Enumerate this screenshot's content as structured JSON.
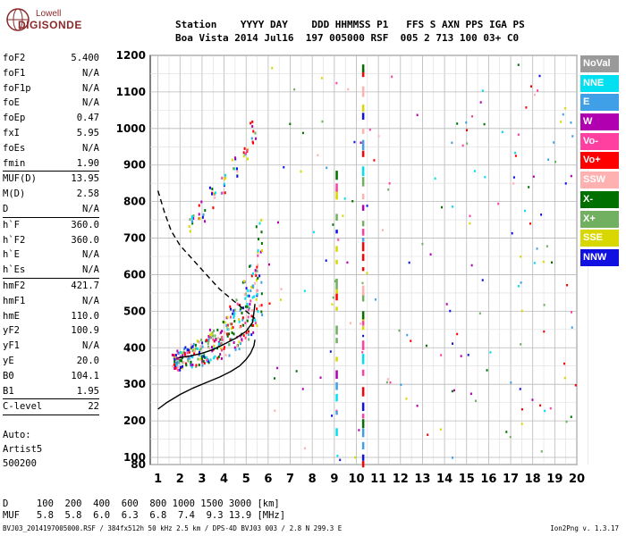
{
  "logo": {
    "line1": "Lowell",
    "line2": "DIGISONDE"
  },
  "header": {
    "line1": "Station    YYYY DAY    DDD HHMMSS P1   FFS S AXN PPS IGA PS",
    "line2": "Boa Vista 2014 Jul16  197 005000 RSF  005 2 713 100 03+ C0"
  },
  "params": [
    {
      "k": "foF2",
      "v": "5.400"
    },
    {
      "k": "foF1",
      "v": "N/A"
    },
    {
      "k": "foF1p",
      "v": "N/A"
    },
    {
      "k": "foE",
      "v": "N/A"
    },
    {
      "k": "foEp",
      "v": "0.47"
    },
    {
      "k": "fxI",
      "v": "5.95"
    },
    {
      "k": "foEs",
      "v": "N/A"
    },
    {
      "k": "fmin",
      "v": "1.90"
    },
    {
      "sep": true
    },
    {
      "k": "MUF(D)",
      "v": "13.95"
    },
    {
      "k": "M(D)",
      "v": "2.58"
    },
    {
      "k": "D",
      "v": "N/A"
    },
    {
      "sep": true
    },
    {
      "k": "h`F",
      "v": "360.0"
    },
    {
      "k": "h`F2",
      "v": "360.0"
    },
    {
      "k": "h`E",
      "v": "N/A"
    },
    {
      "k": "h`Es",
      "v": "N/A"
    },
    {
      "sep": true
    },
    {
      "k": "hmF2",
      "v": "421.7"
    },
    {
      "k": "hmF1",
      "v": "N/A"
    },
    {
      "k": "hmE",
      "v": "110.0"
    },
    {
      "k": "yF2",
      "v": "100.9"
    },
    {
      "k": "yF1",
      "v": "N/A"
    },
    {
      "k": "yE",
      "v": "20.0"
    },
    {
      "k": "B0",
      "v": "104.1"
    },
    {
      "k": "B1",
      "v": "1.95"
    },
    {
      "sep": true
    },
    {
      "k": "C-level",
      "v": "22"
    },
    {
      "sep": true
    }
  ],
  "auto": {
    "line1": "Auto:",
    "line2": "Artist5",
    "line3": "500200"
  },
  "legend": [
    {
      "label": "NoVal",
      "color": "#9a9a9a"
    },
    {
      "label": "NNE",
      "color": "#00e0f0"
    },
    {
      "label": "E",
      "color": "#3fa0e8"
    },
    {
      "label": "W",
      "color": "#b000b0"
    },
    {
      "label": "Vo-",
      "color": "#ff40a0"
    },
    {
      "label": "Vo+",
      "color": "#ff0000"
    },
    {
      "label": "SSW",
      "color": "#ffb0b0"
    },
    {
      "label": "X-",
      "color": "#007000"
    },
    {
      "label": "X+",
      "color": "#70b060"
    },
    {
      "label": "SSE",
      "color": "#d8d800"
    },
    {
      "label": "NNW",
      "color": "#1010e0"
    }
  ],
  "bottom": {
    "d_row": "D     100  200  400  600  800 1000 1500 3000 [km]",
    "muf_row": "MUF   5.8  5.8  6.0  6.3  6.8  7.4  9.3 13.9 [MHz]"
  },
  "footer": {
    "left": "BVJ03_2014197005000.RSF / 384fx512h 50 kHz 2.5 km / DPS-4D BVJ03 003 / 2.8 N 299.3 E",
    "right": "Ion2Png v. 1.3.17"
  },
  "chart_data": {
    "type": "scatter",
    "xlabel": "",
    "ylabel": "",
    "xlim": [
      1,
      20
    ],
    "ylim": [
      80,
      1200
    ],
    "x_ticks": [
      1,
      2,
      3,
      4,
      5,
      6,
      7,
      8,
      9,
      10,
      11,
      12,
      13,
      14,
      15,
      16,
      17,
      18,
      19,
      20
    ],
    "y_ticks": [
      80,
      100,
      200,
      300,
      400,
      500,
      600,
      700,
      800,
      900,
      1000,
      1100,
      1200
    ],
    "grid": true,
    "series": [
      {
        "name": "trace-o-mode",
        "style": "solid-line",
        "x": [
          1.9,
          2.5,
          3.0,
          3.5,
          4.0,
          4.5,
          5.0,
          5.3,
          5.4
        ],
        "y": [
          372,
          378,
          385,
          395,
          410,
          425,
          445,
          470,
          520
        ]
      },
      {
        "name": "profile-true-height",
        "style": "solid-line",
        "x": [
          1.0,
          1.4,
          2.0,
          2.6,
          3.2,
          3.8,
          4.3,
          4.7,
          5.0,
          5.2,
          5.35,
          5.4
        ],
        "y": [
          232,
          250,
          272,
          290,
          305,
          320,
          335,
          350,
          368,
          385,
          405,
          422
        ]
      },
      {
        "name": "muf-curve",
        "style": "dashed-line",
        "x": [
          1.0,
          1.3,
          1.6,
          2.0,
          2.6,
          3.2,
          3.8,
          4.4,
          4.9,
          5.4
        ],
        "y": [
          830,
          770,
          720,
          680,
          640,
          600,
          560,
          530,
          505,
          480
        ]
      },
      {
        "name": "echo-f2-cluster",
        "style": "points",
        "x": [
          1.8,
          2.0,
          2.3,
          2.6,
          2.9,
          3.2,
          3.5,
          3.8,
          4.1,
          4.4,
          4.7,
          5.0,
          5.2,
          5.4,
          5.6
        ],
        "y": [
          360,
          365,
          372,
          380,
          388,
          395,
          405,
          415,
          430,
          450,
          470,
          500,
          530,
          570,
          620
        ]
      },
      {
        "name": "echo-f2-multihop",
        "style": "points",
        "x": [
          2.5,
          3.0,
          3.5,
          4.0,
          4.5,
          5.0,
          5.3
        ],
        "y": [
          740,
          770,
          810,
          850,
          890,
          940,
          990
        ]
      }
    ]
  }
}
